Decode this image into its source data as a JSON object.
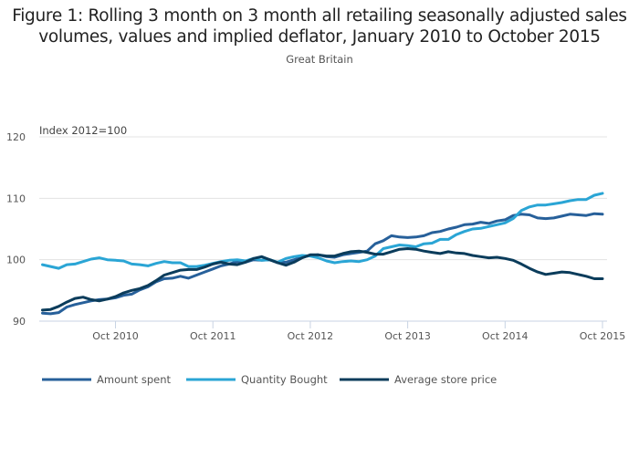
{
  "chart_data": {
    "type": "line",
    "title": "Figure 1: Rolling 3 month on 3 month all retailing seasonally adjusted sales volumes, values and implied deflator, January 2010 to October 2015",
    "subtitle": "Great Britain",
    "ylabel": "Index 2012=100",
    "xlabel": "",
    "ylim": [
      90,
      120
    ],
    "yticks": [
      90,
      100,
      110,
      120
    ],
    "x_start": "Jan 2010",
    "x_end": "Oct 2015",
    "x_frequency": "monthly",
    "xticks": [
      {
        "label": "Oct 2010",
        "index": 9
      },
      {
        "label": "Oct 2011",
        "index": 21
      },
      {
        "label": "Oct 2012",
        "index": 33
      },
      {
        "label": "Oct 2013",
        "index": 45
      },
      {
        "label": "Oct 2014",
        "index": 57
      },
      {
        "label": "Oct 2015",
        "index": 69
      }
    ],
    "grid": "horizontal",
    "legend_position": "bottom-left",
    "series": [
      {
        "name": "Amount spent",
        "color": "#27609a",
        "values": [
          91.3,
          91.2,
          91.4,
          92.3,
          92.7,
          93.0,
          93.3,
          93.5,
          93.6,
          93.8,
          94.2,
          94.4,
          95.1,
          95.6,
          96.4,
          96.9,
          97.0,
          97.3,
          97.0,
          97.5,
          98.0,
          98.5,
          99.0,
          99.3,
          99.7,
          99.6,
          100.0,
          99.9,
          100.0,
          99.5,
          99.6,
          100.0,
          100.4,
          100.7,
          100.8,
          100.5,
          100.4,
          100.8,
          101.0,
          101.2,
          101.4,
          102.6,
          103.1,
          103.9,
          103.7,
          103.6,
          103.7,
          103.9,
          104.4,
          104.6,
          105.0,
          105.3,
          105.7,
          105.8,
          106.1,
          105.9,
          106.3,
          106.5,
          107.2,
          107.4,
          107.3,
          106.8,
          106.7,
          106.8,
          107.1,
          107.4,
          107.3,
          107.2,
          107.5,
          107.4
        ]
      },
      {
        "name": "Quantity Bought",
        "color": "#2aa5d5",
        "values": [
          99.2,
          98.9,
          98.6,
          99.2,
          99.3,
          99.7,
          100.1,
          100.3,
          100.0,
          99.9,
          99.8,
          99.3,
          99.2,
          99.0,
          99.4,
          99.7,
          99.5,
          99.5,
          98.9,
          98.9,
          99.1,
          99.4,
          99.7,
          99.9,
          100.0,
          99.8,
          100.2,
          99.9,
          100.0,
          99.6,
          100.2,
          100.5,
          100.7,
          100.6,
          100.3,
          99.8,
          99.5,
          99.7,
          99.8,
          99.7,
          100.0,
          100.6,
          101.8,
          102.1,
          102.4,
          102.3,
          102.1,
          102.6,
          102.7,
          103.3,
          103.3,
          104.1,
          104.6,
          105.0,
          105.1,
          105.4,
          105.7,
          106.0,
          106.7,
          108.0,
          108.6,
          108.9,
          108.9,
          109.1,
          109.3,
          109.6,
          109.8,
          109.8,
          110.5,
          110.8
        ]
      },
      {
        "name": "Average store price",
        "color": "#0b3c5b",
        "values": [
          91.8,
          91.9,
          92.4,
          93.1,
          93.7,
          93.9,
          93.5,
          93.3,
          93.6,
          94.0,
          94.6,
          95.0,
          95.3,
          95.8,
          96.6,
          97.5,
          97.9,
          98.3,
          98.4,
          98.4,
          98.8,
          99.3,
          99.6,
          99.3,
          99.2,
          99.6,
          100.2,
          100.5,
          100.0,
          99.5,
          99.1,
          99.6,
          100.3,
          100.8,
          100.8,
          100.6,
          100.6,
          101.0,
          101.3,
          101.4,
          101.2,
          100.9,
          100.9,
          101.3,
          101.7,
          101.8,
          101.7,
          101.4,
          101.2,
          101.0,
          101.3,
          101.1,
          101.0,
          100.7,
          100.5,
          100.3,
          100.4,
          100.2,
          99.9,
          99.3,
          98.6,
          98.0,
          97.6,
          97.8,
          98.0,
          97.9,
          97.6,
          97.3,
          96.9,
          96.9
        ]
      }
    ]
  }
}
